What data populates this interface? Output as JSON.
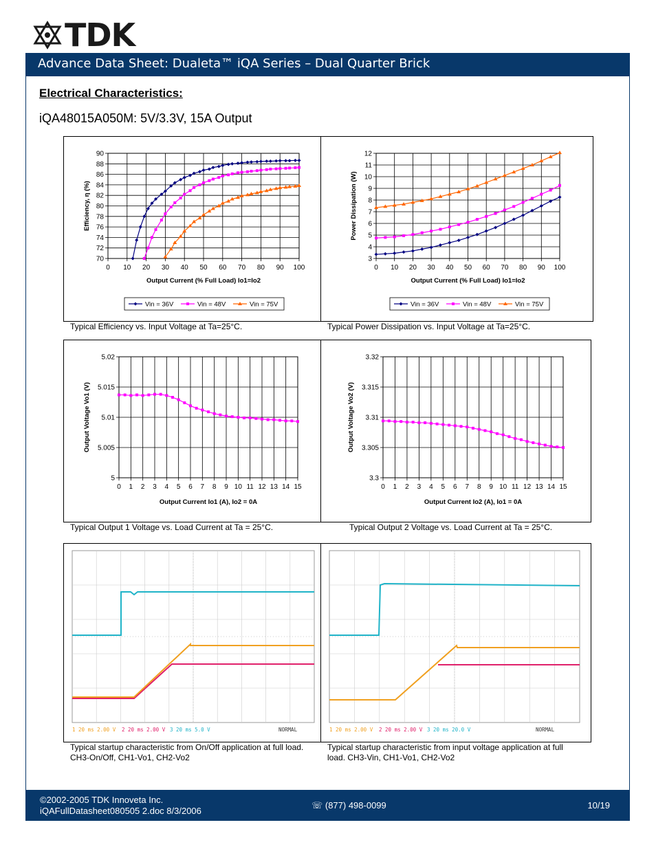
{
  "header": {
    "logo_text": "TDK",
    "title": "Advance Data Sheet: Dualeta™ iQA Series – Dual Quarter Brick"
  },
  "section_title": "Electrical Characteristics:",
  "subtitle": "iQA48015A050M: 5V/3.3V, 15A Output",
  "captions": {
    "efficiency": "Typical Efficiency vs. Input Voltage at Ta=25°C.",
    "dissipation": "Typical Power Dissipation vs. Input Voltage at Ta=25°C.",
    "vo1": "Typical Output 1 Voltage vs. Load Current at Ta = 25°C.",
    "vo2": "Typical Output 2 Voltage vs. Load Current at Ta = 25°C.",
    "startup_onoff_line1": "Typical startup characteristic from On/Off application at full load.",
    "startup_onoff_line2": "CH3-On/Off, CH1-Vo1, CH2-Vo2",
    "startup_vin_line1": "Typical startup characteristic from input voltage application at full",
    "startup_vin_line2": "load.  CH3-Vin, CH1-Vo1, CH2-Vo2"
  },
  "scope_labels": {
    "onoff": {
      "ch1": "1  20 ms  2.00 V",
      "ch2": "2  20 ms  2.00 V",
      "ch3": "3  20 ms  5.0 V",
      "mode": "NORMAL"
    },
    "vin": {
      "ch1": "1  20 ms  2.00 V",
      "ch2": "2  20 ms  2.00 V",
      "ch3": "3  20 ms  20.0 V",
      "mode": "NORMAL"
    }
  },
  "footer": {
    "copyright": "©2002-2005  TDK Innoveta Inc.",
    "docname": "iQAFullDatasheet080505  2.doc 8/3/2006",
    "phone": "☏ (877) 498-0099",
    "page": "10/19"
  },
  "colors": {
    "navy": "#08386a",
    "series36": "#000080",
    "series48": "#ff00ff",
    "series75": "#ff6600",
    "cyan": "#1fb3c8",
    "orange": "#f0a020",
    "magenta": "#e0206a"
  },
  "chart_data": [
    {
      "type": "line",
      "xlabel": "Output Current (% Full Load)  Io1=Io2",
      "ylabel": "Efficiency, η (%)",
      "xlim": [
        0,
        100
      ],
      "ylim": [
        70,
        90
      ],
      "xticks": [
        0,
        10,
        20,
        30,
        40,
        50,
        60,
        70,
        80,
        90,
        100
      ],
      "yticks": [
        70,
        72,
        74,
        76,
        78,
        80,
        82,
        84,
        86,
        88,
        90
      ],
      "grid": "horizontal",
      "legend_position": "bottom",
      "series": [
        {
          "name": "Vin = 36V",
          "marker": "diamond",
          "x": [
            13,
            15,
            17,
            19,
            21,
            23,
            25,
            28,
            30,
            33,
            35,
            38,
            40,
            43,
            45,
            48,
            50,
            53,
            55,
            58,
            60,
            63,
            65,
            68,
            70,
            73,
            75,
            78,
            80,
            83,
            85,
            88,
            90,
            93,
            95,
            98,
            100
          ],
          "y": [
            70,
            73.5,
            76,
            78,
            79.5,
            80.5,
            81.3,
            82.2,
            82.8,
            83.8,
            84.4,
            85,
            85.4,
            85.8,
            86.2,
            86.5,
            86.8,
            87,
            87.3,
            87.5,
            87.7,
            87.9,
            88,
            88.1,
            88.2,
            88.3,
            88.35,
            88.4,
            88.45,
            88.5,
            88.5,
            88.55,
            88.6,
            88.6,
            88.6,
            88.65,
            88.65
          ]
        },
        {
          "name": "Vin = 48V",
          "marker": "square",
          "x": [
            19,
            21,
            23,
            25,
            28,
            30,
            33,
            35,
            38,
            40,
            43,
            45,
            48,
            50,
            53,
            55,
            58,
            60,
            63,
            65,
            68,
            70,
            73,
            75,
            78,
            80,
            83,
            85,
            88,
            90,
            93,
            95,
            98,
            100
          ],
          "y": [
            70,
            72,
            74,
            75.5,
            77.3,
            78.5,
            79.8,
            80.6,
            81.5,
            82.2,
            82.9,
            83.5,
            84,
            84.4,
            84.8,
            85.1,
            85.4,
            85.7,
            85.9,
            86.1,
            86.3,
            86.4,
            86.5,
            86.6,
            86.7,
            86.8,
            86.9,
            87,
            87.05,
            87.1,
            87.15,
            87.2,
            87.25,
            87.3
          ]
        },
        {
          "name": "Vin = 75V",
          "marker": "triangle",
          "x": [
            30,
            33,
            35,
            38,
            40,
            43,
            45,
            48,
            50,
            53,
            55,
            58,
            60,
            63,
            65,
            68,
            70,
            73,
            75,
            78,
            80,
            83,
            85,
            88,
            90,
            93,
            95,
            98,
            100
          ],
          "y": [
            70.3,
            71.8,
            73,
            74.2,
            75.2,
            76.2,
            77,
            77.7,
            78.3,
            79,
            79.5,
            80,
            80.5,
            80.9,
            81.3,
            81.6,
            81.9,
            82.1,
            82.3,
            82.5,
            82.7,
            82.9,
            83.1,
            83.3,
            83.45,
            83.55,
            83.65,
            83.75,
            83.85
          ]
        }
      ]
    },
    {
      "type": "line",
      "xlabel": "Output Current (% Full Load)  Io1=Io2",
      "ylabel": "Power Dissipation (W)",
      "xlim": [
        0,
        100
      ],
      "ylim": [
        3,
        12
      ],
      "xticks": [
        0,
        10,
        20,
        30,
        40,
        50,
        60,
        70,
        80,
        90,
        100
      ],
      "yticks": [
        3,
        4,
        5,
        6,
        7,
        8,
        9,
        10,
        11,
        12
      ],
      "grid": "horizontal",
      "legend_position": "bottom",
      "series": [
        {
          "name": "Vin = 36V",
          "marker": "diamond",
          "x": [
            0,
            5,
            10,
            15,
            20,
            25,
            30,
            35,
            40,
            45,
            50,
            55,
            60,
            65,
            70,
            75,
            80,
            85,
            90,
            95,
            100
          ],
          "y": [
            3.35,
            3.4,
            3.45,
            3.55,
            3.65,
            3.8,
            3.95,
            4.15,
            4.35,
            4.55,
            4.8,
            5.05,
            5.35,
            5.65,
            6,
            6.35,
            6.7,
            7.1,
            7.5,
            7.9,
            8.25
          ]
        },
        {
          "name": "Vin = 48V",
          "marker": "square",
          "x": [
            0,
            5,
            10,
            15,
            20,
            25,
            30,
            35,
            40,
            45,
            50,
            55,
            60,
            65,
            70,
            75,
            80,
            85,
            90,
            95,
            100
          ],
          "y": [
            4.75,
            4.8,
            4.85,
            4.95,
            5.05,
            5.2,
            5.35,
            5.5,
            5.7,
            5.9,
            6.1,
            6.35,
            6.6,
            6.85,
            7.15,
            7.45,
            7.8,
            8.15,
            8.5,
            8.85,
            9.25
          ]
        },
        {
          "name": "Vin = 75V",
          "marker": "triangle",
          "x": [
            0,
            5,
            10,
            15,
            20,
            25,
            30,
            35,
            40,
            45,
            50,
            55,
            60,
            65,
            70,
            75,
            80,
            85,
            90,
            95,
            100
          ],
          "y": [
            7.35,
            7.45,
            7.55,
            7.65,
            7.8,
            7.95,
            8.1,
            8.3,
            8.5,
            8.7,
            8.95,
            9.2,
            9.5,
            9.8,
            10.1,
            10.4,
            10.7,
            11,
            11.35,
            11.7,
            12.05
          ]
        }
      ]
    },
    {
      "type": "line",
      "xlabel": "Output Current Io1 (A), Io2 = 0A",
      "ylabel": "Output Voltage Vo1 (V)",
      "xlim": [
        0,
        15
      ],
      "ylim": [
        5,
        5.02
      ],
      "xticks": [
        0,
        1,
        2,
        3,
        4,
        5,
        6,
        7,
        8,
        9,
        10,
        11,
        12,
        13,
        14,
        15
      ],
      "yticks": [
        5,
        5.005,
        5.01,
        5.015,
        5.02
      ],
      "grid": "both",
      "series": [
        {
          "marker": "square",
          "x": [
            0,
            0.5,
            1,
            1.5,
            2,
            2.5,
            3,
            3.5,
            4,
            4.5,
            5,
            5.5,
            6,
            6.5,
            7,
            7.5,
            8,
            8.5,
            9,
            9.5,
            10,
            10.5,
            11,
            11.5,
            12,
            12.5,
            13,
            13.5,
            14,
            14.5,
            15
          ],
          "y": [
            5.0137,
            5.0137,
            5.0136,
            5.0137,
            5.0136,
            5.0137,
            5.0138,
            5.0138,
            5.0136,
            5.0133,
            5.0129,
            5.0124,
            5.0119,
            5.0115,
            5.0112,
            5.0109,
            5.0106,
            5.0104,
            5.0102,
            5.0101,
            5.01,
            5.0099,
            5.0099,
            5.0098,
            5.0097,
            5.0096,
            5.0096,
            5.0095,
            5.0094,
            5.0094,
            5.0093
          ]
        }
      ]
    },
    {
      "type": "line",
      "xlabel": "Output Current Io2 (A), Io1 = 0A",
      "ylabel": "Output Voltage Vo2 (V)",
      "xlim": [
        0,
        15
      ],
      "ylim": [
        3.3,
        3.32
      ],
      "xticks": [
        0,
        1,
        2,
        3,
        4,
        5,
        6,
        7,
        8,
        9,
        10,
        11,
        12,
        13,
        14,
        15
      ],
      "yticks": [
        3.3,
        3.305,
        3.31,
        3.315,
        3.32
      ],
      "grid": "both",
      "series": [
        {
          "marker": "square",
          "x": [
            0,
            0.5,
            1,
            1.5,
            2,
            2.5,
            3,
            3.5,
            4,
            4.5,
            5,
            5.5,
            6,
            6.5,
            7,
            7.5,
            8,
            8.5,
            9,
            9.5,
            10,
            10.5,
            11,
            11.5,
            12,
            12.5,
            13,
            13.5,
            14,
            14.5,
            15
          ],
          "y": [
            3.3094,
            3.3094,
            3.3093,
            3.3093,
            3.3092,
            3.3092,
            3.3091,
            3.3091,
            3.309,
            3.3089,
            3.3088,
            3.3087,
            3.3086,
            3.3085,
            3.3084,
            3.3082,
            3.308,
            3.3078,
            3.3076,
            3.3073,
            3.3071,
            3.3068,
            3.3065,
            3.3063,
            3.306,
            3.3058,
            3.3056,
            3.3054,
            3.3052,
            3.3051,
            3.305
          ]
        }
      ]
    }
  ]
}
